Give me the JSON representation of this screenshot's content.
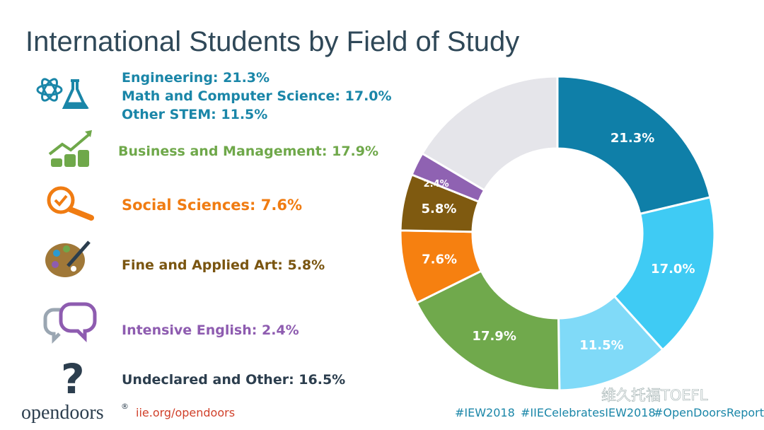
{
  "chart_data": {
    "type": "donut",
    "title": "International Students by Field of Study",
    "categories": [
      "Engineering",
      "Math and Computer Science",
      "Other STEM",
      "Business and Management",
      "Social Sciences",
      "Fine and Applied Art",
      "Intensive English",
      "Undeclared and Other"
    ],
    "values": [
      21.3,
      17.0,
      11.5,
      17.9,
      7.6,
      5.8,
      2.4,
      16.5
    ],
    "value_labels": [
      "21.3%",
      "17.0%",
      "11.5%",
      "17.9%",
      "7.6%",
      "5.8%",
      "2.4%",
      null
    ],
    "legend_labels": [
      "Engineering: 21.3%",
      "Math and Computer Science: 17.0%",
      "Other STEM: 11.5%",
      "Business and Management: 17.9%",
      "Social Sciences: 7.6%",
      "Fine and Applied Art: 5.8%",
      "Intensive English: 2.4%",
      "Undeclared and Other: 16.5%"
    ],
    "colors": [
      "#0f7fa8",
      "#3fcbf4",
      "#80daf8",
      "#70a94c",
      "#f68010",
      "#7f5a10",
      "#8f62b2",
      "#e5e5ea"
    ]
  },
  "footer": {
    "logo": "opendoors",
    "logo_mark": "®",
    "url": "iie.org/opendoors",
    "hashtags": [
      "#IEW2018",
      "#IIECelebratesIEW2018",
      "#OpenDoorsReport"
    ],
    "watermark": "维久托福TOEFL"
  }
}
